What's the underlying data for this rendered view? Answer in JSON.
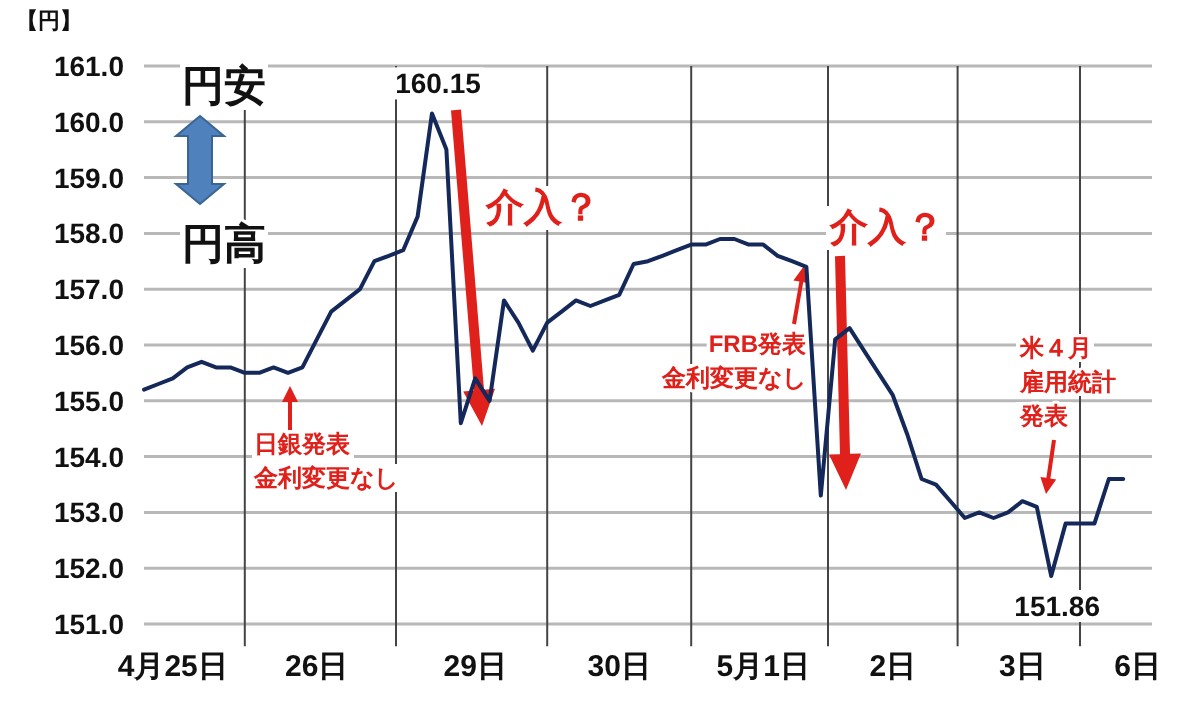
{
  "chart_data": {
    "type": "line",
    "ylabel": "【円】",
    "categories": [
      null,
      null,
      "4月25日",
      null,
      null,
      null,
      null,
      null,
      null,
      null,
      null,
      null,
      "26日",
      null,
      null,
      null,
      null,
      null,
      null,
      null,
      null,
      null,
      null,
      "29日",
      null,
      null,
      null,
      null,
      null,
      null,
      null,
      null,
      null,
      "30日",
      null,
      null,
      null,
      null,
      null,
      null,
      null,
      null,
      null,
      "5月1日",
      null,
      null,
      null,
      null,
      null,
      null,
      null,
      null,
      "2日",
      null,
      null,
      null,
      null,
      null,
      null,
      null,
      null,
      "3日",
      null,
      null,
      null,
      null,
      null,
      null,
      null,
      "6日"
    ],
    "series": [
      {
        "color": "#14285a",
        "values": [
          155.2,
          155.3,
          155.4,
          155.6,
          155.7,
          155.6,
          155.6,
          155.5,
          155.5,
          155.6,
          155.5,
          155.6,
          156.1,
          156.6,
          156.8,
          157.0,
          157.5,
          157.6,
          157.7,
          158.3,
          160.15,
          159.5,
          154.6,
          155.4,
          155.0,
          156.8,
          156.4,
          155.9,
          156.4,
          156.6,
          156.8,
          156.7,
          156.8,
          156.9,
          157.45,
          157.5,
          157.6,
          157.7,
          157.8,
          157.8,
          157.9,
          157.9,
          157.8,
          157.8,
          157.6,
          157.5,
          157.4,
          153.3,
          156.1,
          156.3,
          155.9,
          155.5,
          155.1,
          154.4,
          153.6,
          153.5,
          153.2,
          152.9,
          153.0,
          152.9,
          153.0,
          153.2,
          153.1,
          151.86,
          152.8,
          152.8,
          152.8,
          153.6,
          153.6,
          null
        ],
        "value_labels": [
          null,
          null,
          null,
          null,
          null,
          null,
          null,
          null,
          null,
          null,
          null,
          null,
          null,
          null,
          null,
          null,
          null,
          null,
          null,
          null,
          "160.15",
          null,
          null,
          null,
          null,
          null,
          null,
          null,
          null,
          null,
          null,
          null,
          null,
          null,
          null,
          null,
          null,
          null,
          null,
          null,
          null,
          null,
          null,
          null,
          null,
          null,
          null,
          null,
          null,
          null,
          null,
          null,
          null,
          null,
          null,
          null,
          null,
          null,
          null,
          null,
          null,
          null,
          null,
          "151.86",
          null,
          null,
          null,
          null,
          null,
          null
        ]
      }
    ],
    "ylim": [
      150.6,
      161.0
    ],
    "yticks": [
      {
        "value": 151,
        "label": "151.0"
      },
      {
        "value": 152,
        "label": "152.0"
      },
      {
        "value": 153,
        "label": "153.0"
      },
      {
        "value": 154,
        "label": "154.0"
      },
      {
        "value": 155,
        "label": "155.0"
      },
      {
        "value": 156,
        "label": "156.0"
      },
      {
        "value": 157,
        "label": "157.0"
      },
      {
        "value": 158,
        "label": "158.0"
      },
      {
        "value": 159,
        "label": "159.0"
      },
      {
        "value": 160,
        "label": "160.0"
      },
      {
        "value": 161,
        "label": "161.0"
      }
    ],
    "grid": true,
    "annotations": [
      "日銀発表",
      "金利変更なし",
      "FRB発表",
      "金利変更なし",
      "米４月",
      "雇用統計",
      "発表",
      "介入？",
      "介入？",
      "円安",
      "円高"
    ]
  }
}
